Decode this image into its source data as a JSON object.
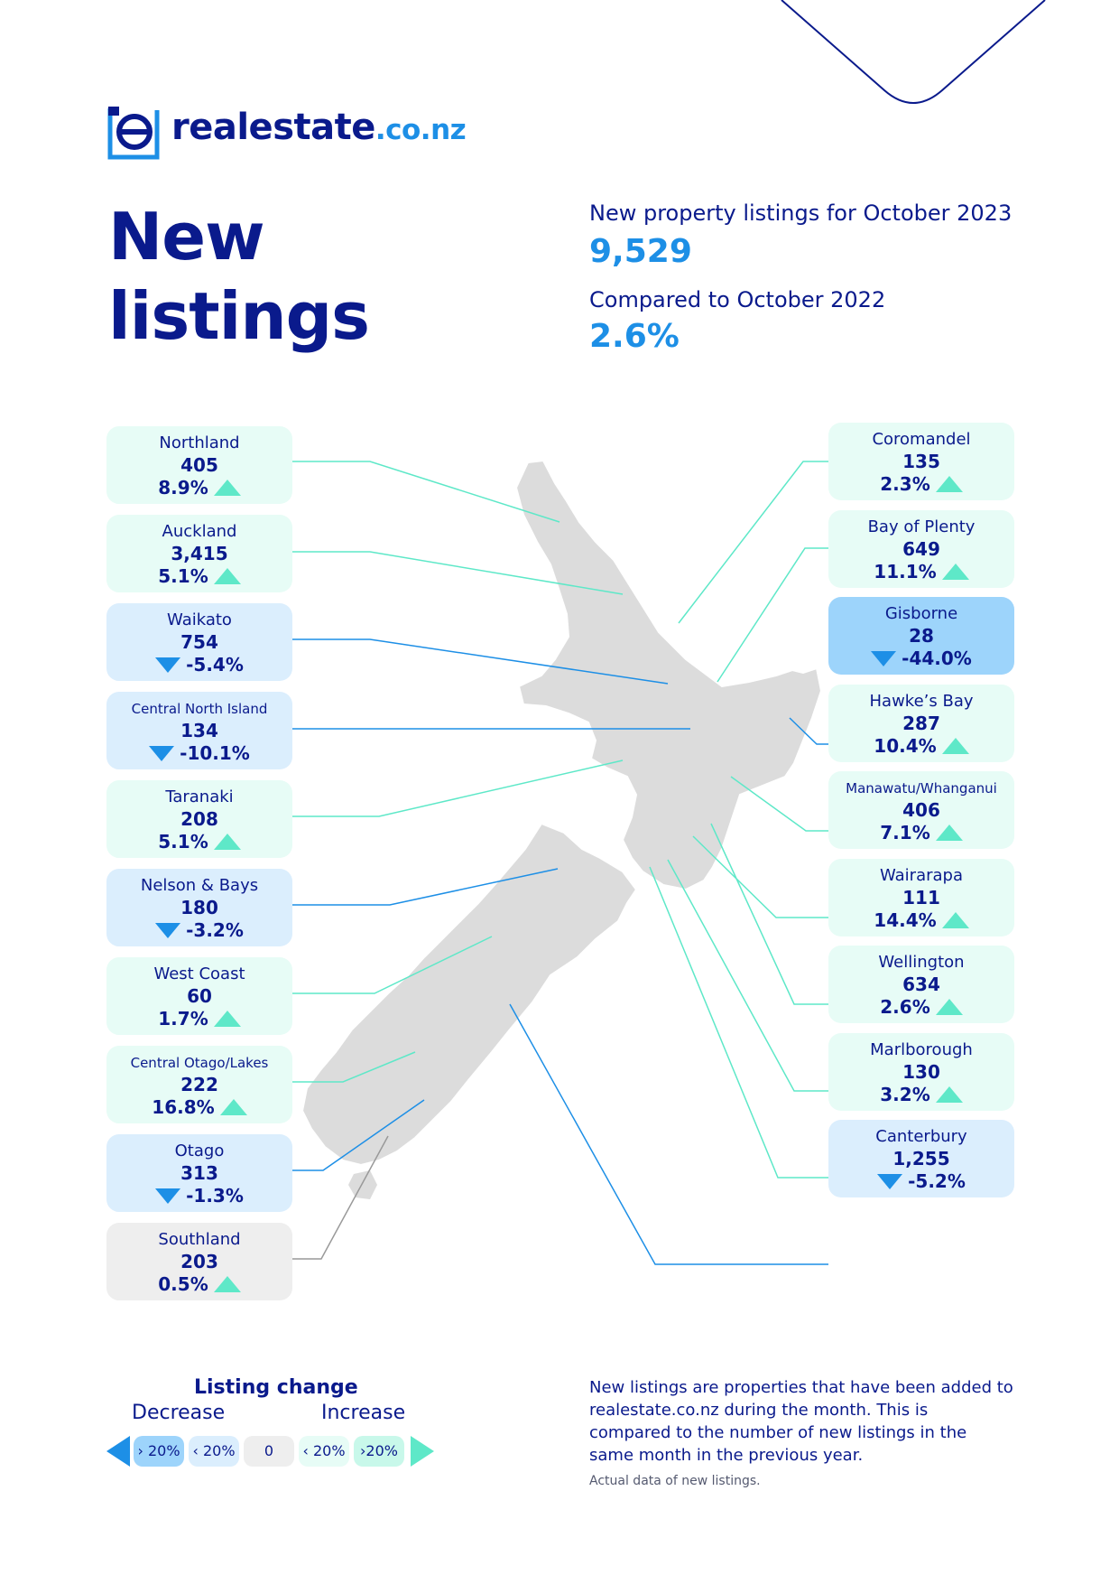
{
  "brand": {
    "name": "realestate",
    "tld": ".co.nz"
  },
  "title": {
    "line1": "New",
    "line2": "listings"
  },
  "kpis": {
    "listings_label": "New property listings for October 2023",
    "listings_value": "9,529",
    "compare_label": "Compared to October 2022",
    "compare_value": "2.6%"
  },
  "colors": {
    "navy": "#0a1a8c",
    "accent_blue": "#1d8fe6",
    "increase": "#5ee8c8",
    "increase_bg": "#e7fcf6",
    "decrease_bg": "#dbeefd",
    "decrease_strong_bg": "#9dd4fb",
    "neutral_bg": "#eeeeee",
    "map_land": "#dcdcdc"
  },
  "regions_left": [
    {
      "name": "Northland",
      "count": "405",
      "change": "8.9%",
      "direction": "up",
      "band": "inc-lo"
    },
    {
      "name": "Auckland",
      "count": "3,415",
      "change": "5.1%",
      "direction": "up",
      "band": "inc-lo"
    },
    {
      "name": "Waikato",
      "count": "754",
      "change": "-5.4%",
      "direction": "down",
      "band": "dec-lo"
    },
    {
      "name": "Central North Island",
      "count": "134",
      "change": "-10.1%",
      "direction": "down",
      "band": "dec-lo",
      "small": true
    },
    {
      "name": "Taranaki",
      "count": "208",
      "change": "5.1%",
      "direction": "up",
      "band": "inc-lo"
    },
    {
      "name": "Nelson & Bays",
      "count": "180",
      "change": "-3.2%",
      "direction": "down",
      "band": "dec-lo"
    },
    {
      "name": "West Coast",
      "count": "60",
      "change": "1.7%",
      "direction": "up",
      "band": "inc-lo"
    },
    {
      "name": "Central Otago/Lakes",
      "count": "222",
      "change": "16.8%",
      "direction": "up",
      "band": "inc-lo",
      "small": true
    },
    {
      "name": "Otago",
      "count": "313",
      "change": "-1.3%",
      "direction": "down",
      "band": "dec-lo"
    },
    {
      "name": "Southland",
      "count": "203",
      "change": "0.5%",
      "direction": "up",
      "band": "zero"
    }
  ],
  "regions_right": [
    {
      "name": "Coromandel",
      "count": "135",
      "change": "2.3%",
      "direction": "up",
      "band": "inc-lo"
    },
    {
      "name": "Bay of Plenty",
      "count": "649",
      "change": "11.1%",
      "direction": "up",
      "band": "inc-lo"
    },
    {
      "name": "Gisborne",
      "count": "28",
      "change": "-44.0%",
      "direction": "down",
      "band": "dec-hi"
    },
    {
      "name": "Hawke’s Bay",
      "count": "287",
      "change": "10.4%",
      "direction": "up",
      "band": "inc-lo"
    },
    {
      "name": "Manawatu/Whanganui",
      "count": "406",
      "change": "7.1%",
      "direction": "up",
      "band": "inc-lo",
      "small": true
    },
    {
      "name": "Wairarapa",
      "count": "111",
      "change": "14.4%",
      "direction": "up",
      "band": "inc-lo"
    },
    {
      "name": "Wellington",
      "count": "634",
      "change": "2.6%",
      "direction": "up",
      "band": "inc-lo"
    },
    {
      "name": "Marlborough",
      "count": "130",
      "change": "3.2%",
      "direction": "up",
      "band": "inc-lo"
    },
    {
      "name": "Canterbury",
      "count": "1,255",
      "change": "-5.2%",
      "direction": "down",
      "band": "dec-lo"
    }
  ],
  "legend": {
    "title": "Listing change",
    "decrease_label": "Decrease",
    "increase_label": "Increase",
    "pills": [
      "› 20%",
      "‹ 20%",
      "0",
      "‹ 20%",
      "›20%"
    ]
  },
  "note": {
    "text": "New listings are properties that have been added to realestate.co.nz during the month. This is compared to the number of new listings in the same month in the previous year.",
    "footnote": "Actual data of new listings."
  }
}
